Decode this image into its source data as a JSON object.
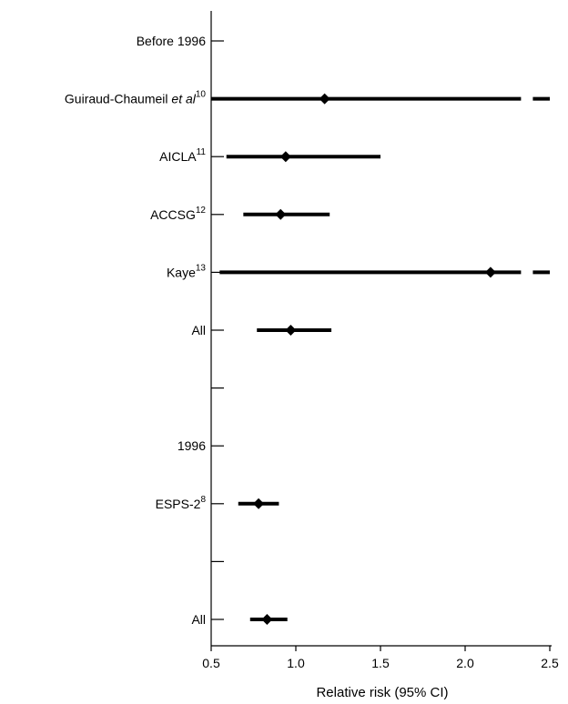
{
  "chart_data": {
    "type": "forest",
    "xlabel": "Relative risk (95% CI)",
    "xlim": [
      0.5,
      2.5
    ],
    "xticks": [
      "0.5",
      "1.0",
      "1.5",
      "2.0",
      "2.5"
    ],
    "xtick_values": [
      0.5,
      1.0,
      1.5,
      2.0,
      2.5
    ],
    "rows": [
      {
        "label": "Before 1996",
        "sup": "",
        "italic": "",
        "header": true
      },
      {
        "label": "Guiraud-Chaumeil ",
        "italic": "et al",
        "sup": "10",
        "estimate": 1.17,
        "lower": 0.5,
        "upper": 2.33,
        "extends_beyond": true
      },
      {
        "label": "AICLA",
        "italic": "",
        "sup": "11",
        "estimate": 0.94,
        "lower": 0.59,
        "upper": 1.5
      },
      {
        "label": "ACCSG",
        "italic": "",
        "sup": "12",
        "estimate": 0.91,
        "lower": 0.69,
        "upper": 1.2
      },
      {
        "label": "Kaye",
        "italic": "",
        "sup": "13",
        "estimate": 2.15,
        "lower": 0.55,
        "upper": 2.33,
        "extends_beyond": true
      },
      {
        "label": "All",
        "italic": "",
        "sup": "",
        "estimate": 0.97,
        "lower": 0.77,
        "upper": 1.21
      },
      {
        "label": "",
        "italic": "",
        "sup": "",
        "spacer": true
      },
      {
        "label": "1996",
        "italic": "",
        "sup": "",
        "header": true
      },
      {
        "label": "ESPS-2",
        "italic": "",
        "sup": "8",
        "estimate": 0.78,
        "lower": 0.66,
        "upper": 0.9
      },
      {
        "label": "",
        "italic": "",
        "sup": "",
        "spacer": true
      },
      {
        "label": "All",
        "italic": "",
        "sup": "",
        "estimate": 0.83,
        "lower": 0.73,
        "upper": 0.95
      }
    ]
  }
}
